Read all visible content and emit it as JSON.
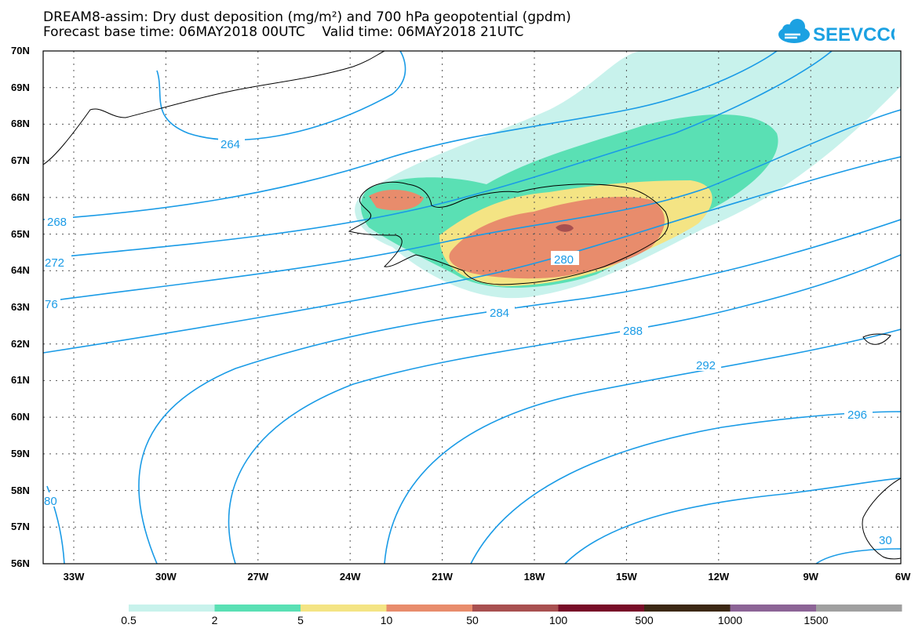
{
  "header": {
    "line1": "DREAM8-assim: Dry dust deposition (mg/m²) and 700 hPa geopotential (gpdm)",
    "line2": "Forecast base time: 06MAY2018 00UTC    Valid time: 06MAY2018 21UTC"
  },
  "logo": {
    "text": "SEEVCCC",
    "color": "#1ba1e2",
    "icon": "cloud-icon"
  },
  "axes": {
    "lat_labels": [
      "70N",
      "69N",
      "68N",
      "67N",
      "66N",
      "65N",
      "64N",
      "63N",
      "62N",
      "61N",
      "60N",
      "59N",
      "58N",
      "57N",
      "56N"
    ],
    "lon_labels": [
      "33W",
      "30W",
      "27W",
      "24W",
      "21W",
      "18W",
      "15W",
      "12W",
      "9W",
      "6W"
    ]
  },
  "contours": {
    "color": "#1a9be6",
    "labels": [
      "264",
      "268",
      "272",
      "76",
      "280",
      "284",
      "288",
      "292",
      "296",
      "80",
      "30"
    ]
  },
  "colorbar": {
    "labels": [
      "0.5",
      "2",
      "5",
      "10",
      "50",
      "100",
      "500",
      "1000",
      "1500"
    ],
    "colors": [
      "#c8f2ec",
      "#5ae0b4",
      "#f4e484",
      "#e88c6c",
      "#a85050",
      "#780c28",
      "#3c2814",
      "#8c6496",
      "#a0a0a0"
    ]
  },
  "land_color": "#000000"
}
